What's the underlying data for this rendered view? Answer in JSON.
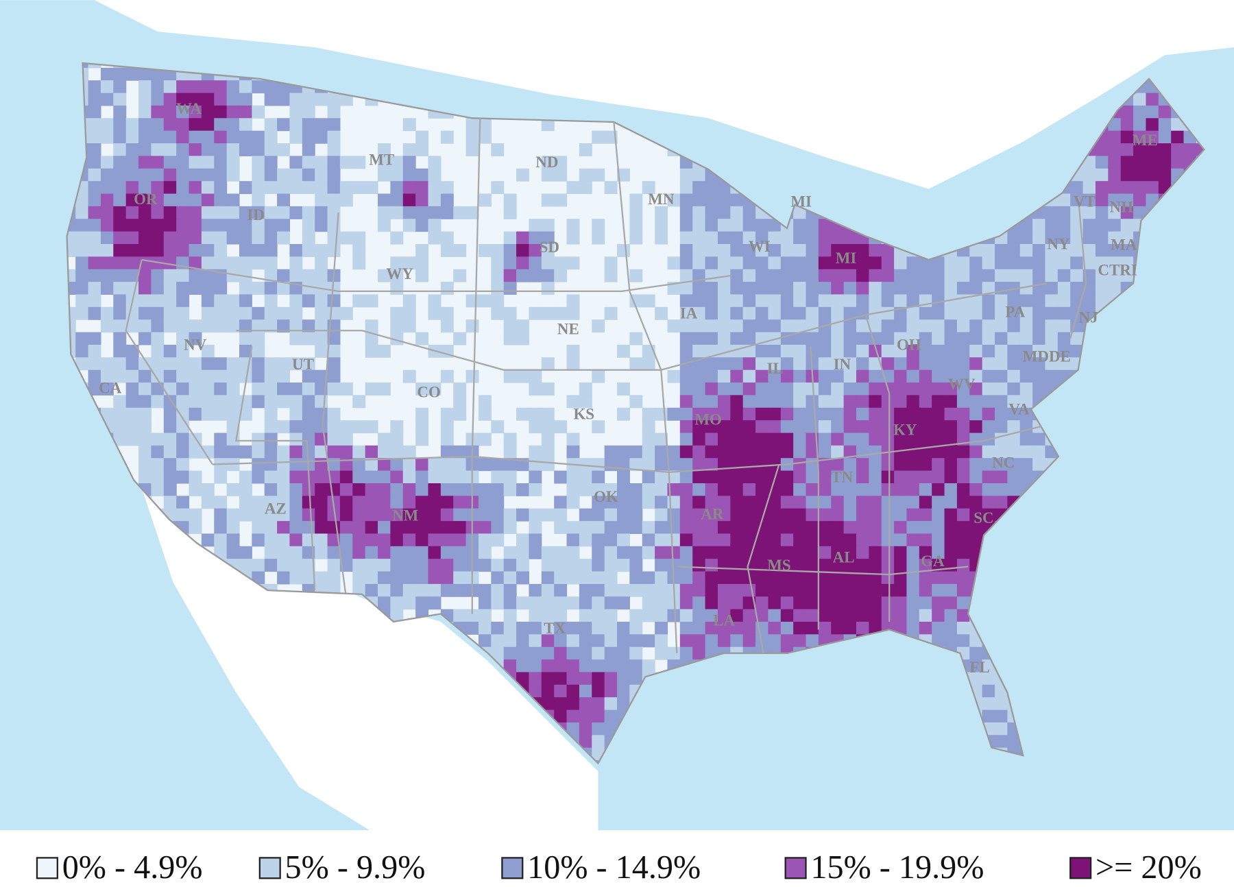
{
  "map": {
    "state_labels": [
      "WA",
      "OR",
      "ID",
      "MT",
      "ND",
      "MN",
      "WI",
      "MI",
      "MI",
      "ME",
      "VT",
      "NH",
      "NY",
      "MA",
      "CTRI",
      "WY",
      "SD",
      "NE",
      "IA",
      "NV",
      "UT",
      "CO",
      "KS",
      "IL",
      "IN",
      "OH",
      "PA",
      "NJ",
      "MDDE",
      "WV",
      "VA",
      "KY",
      "NC",
      "TN",
      "MO",
      "OK",
      "AR",
      "AZ",
      "NM",
      "TX",
      "MS",
      "AL",
      "GA",
      "SC",
      "LA",
      "FL",
      "CA"
    ],
    "legend": [
      {
        "label": "0% - 4.9%",
        "color": "#eef6fb"
      },
      {
        "label": "5% - 9.9%",
        "color": "#bcd3ea"
      },
      {
        "label": "10% - 14.9%",
        "color": "#8f9ed0"
      },
      {
        "label": "15% - 19.9%",
        "color": "#9b55b4"
      },
      {
        "label": ">= 20%",
        "color": "#7e1377"
      }
    ]
  }
}
